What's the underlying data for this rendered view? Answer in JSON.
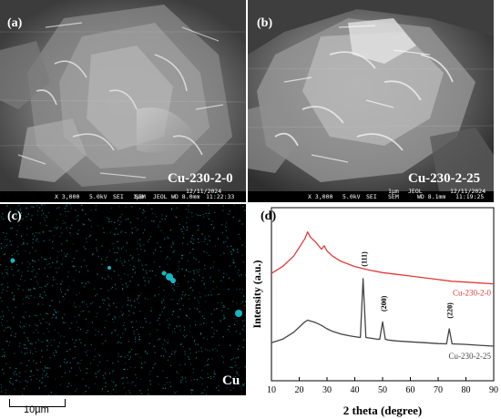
{
  "panel_a": {
    "letter": "(a)",
    "sample": "Cu-230-2-0",
    "info": {
      "mag": "X 3,000",
      "kv": "5.0kV",
      "mode": "SEI",
      "scale": "1µm",
      "maker": "JEOL",
      "type": "SEM",
      "wd": "WD 8.0mm",
      "date": "12/11/2024",
      "time": "11:22:33"
    }
  },
  "panel_b": {
    "letter": "(b)",
    "sample": "Cu-230-2-25",
    "info": {
      "mag": "X 3,000",
      "kv": "5.0kV",
      "mode": "SEI",
      "scale": "1µm",
      "maker": "JEOL",
      "type": "SEM",
      "wd": "WD 8.1mm",
      "date": "12/11/2024",
      "time": "11:19:25"
    }
  },
  "panel_c": {
    "letter": "(c)",
    "element": "Cu",
    "scale_bar": "10µm",
    "dot_color": "#19c9d4"
  },
  "panel_d": {
    "letter": "(d)",
    "chart_data": {
      "type": "line",
      "xlabel": "2 theta (degree)",
      "ylabel": "Intensity (a.u.)",
      "xlim": [
        10,
        90
      ],
      "xticks": [
        10,
        20,
        30,
        40,
        50,
        60,
        70,
        80,
        90
      ],
      "grid": false,
      "series": [
        {
          "name": "Cu-230-2-0",
          "color": "#e03a3a",
          "x": [
            10,
            14,
            18,
            20,
            22,
            23,
            24,
            26,
            28,
            29,
            30,
            32,
            35,
            40,
            45,
            50,
            55,
            60,
            65,
            70,
            75,
            80,
            85,
            90
          ],
          "y": [
            0.62,
            0.66,
            0.72,
            0.77,
            0.82,
            0.86,
            0.83,
            0.8,
            0.76,
            0.78,
            0.75,
            0.72,
            0.69,
            0.66,
            0.64,
            0.625,
            0.615,
            0.605,
            0.595,
            0.585,
            0.575,
            0.57,
            0.565,
            0.56
          ]
        },
        {
          "name": "Cu-230-2-25",
          "color": "#444444",
          "x": [
            10,
            14,
            18,
            20,
            22,
            23,
            24,
            26,
            28,
            30,
            32,
            35,
            38,
            40,
            42,
            43,
            44,
            46,
            48,
            49,
            50,
            51,
            52,
            55,
            60,
            65,
            70,
            73,
            74,
            75,
            80,
            85,
            90
          ],
          "y": [
            0.22,
            0.24,
            0.28,
            0.31,
            0.34,
            0.35,
            0.345,
            0.335,
            0.32,
            0.3,
            0.285,
            0.27,
            0.26,
            0.255,
            0.25,
            0.59,
            0.25,
            0.245,
            0.24,
            0.24,
            0.34,
            0.24,
            0.235,
            0.23,
            0.225,
            0.22,
            0.215,
            0.213,
            0.3,
            0.213,
            0.21,
            0.205,
            0.2
          ]
        }
      ],
      "annotations": [
        {
          "text": "(111)",
          "x": 43.3,
          "y": 0.66
        },
        {
          "text": "(200)",
          "x": 50.4,
          "y": 0.4
        },
        {
          "text": "(220)",
          "x": 74.1,
          "y": 0.36
        }
      ]
    }
  }
}
